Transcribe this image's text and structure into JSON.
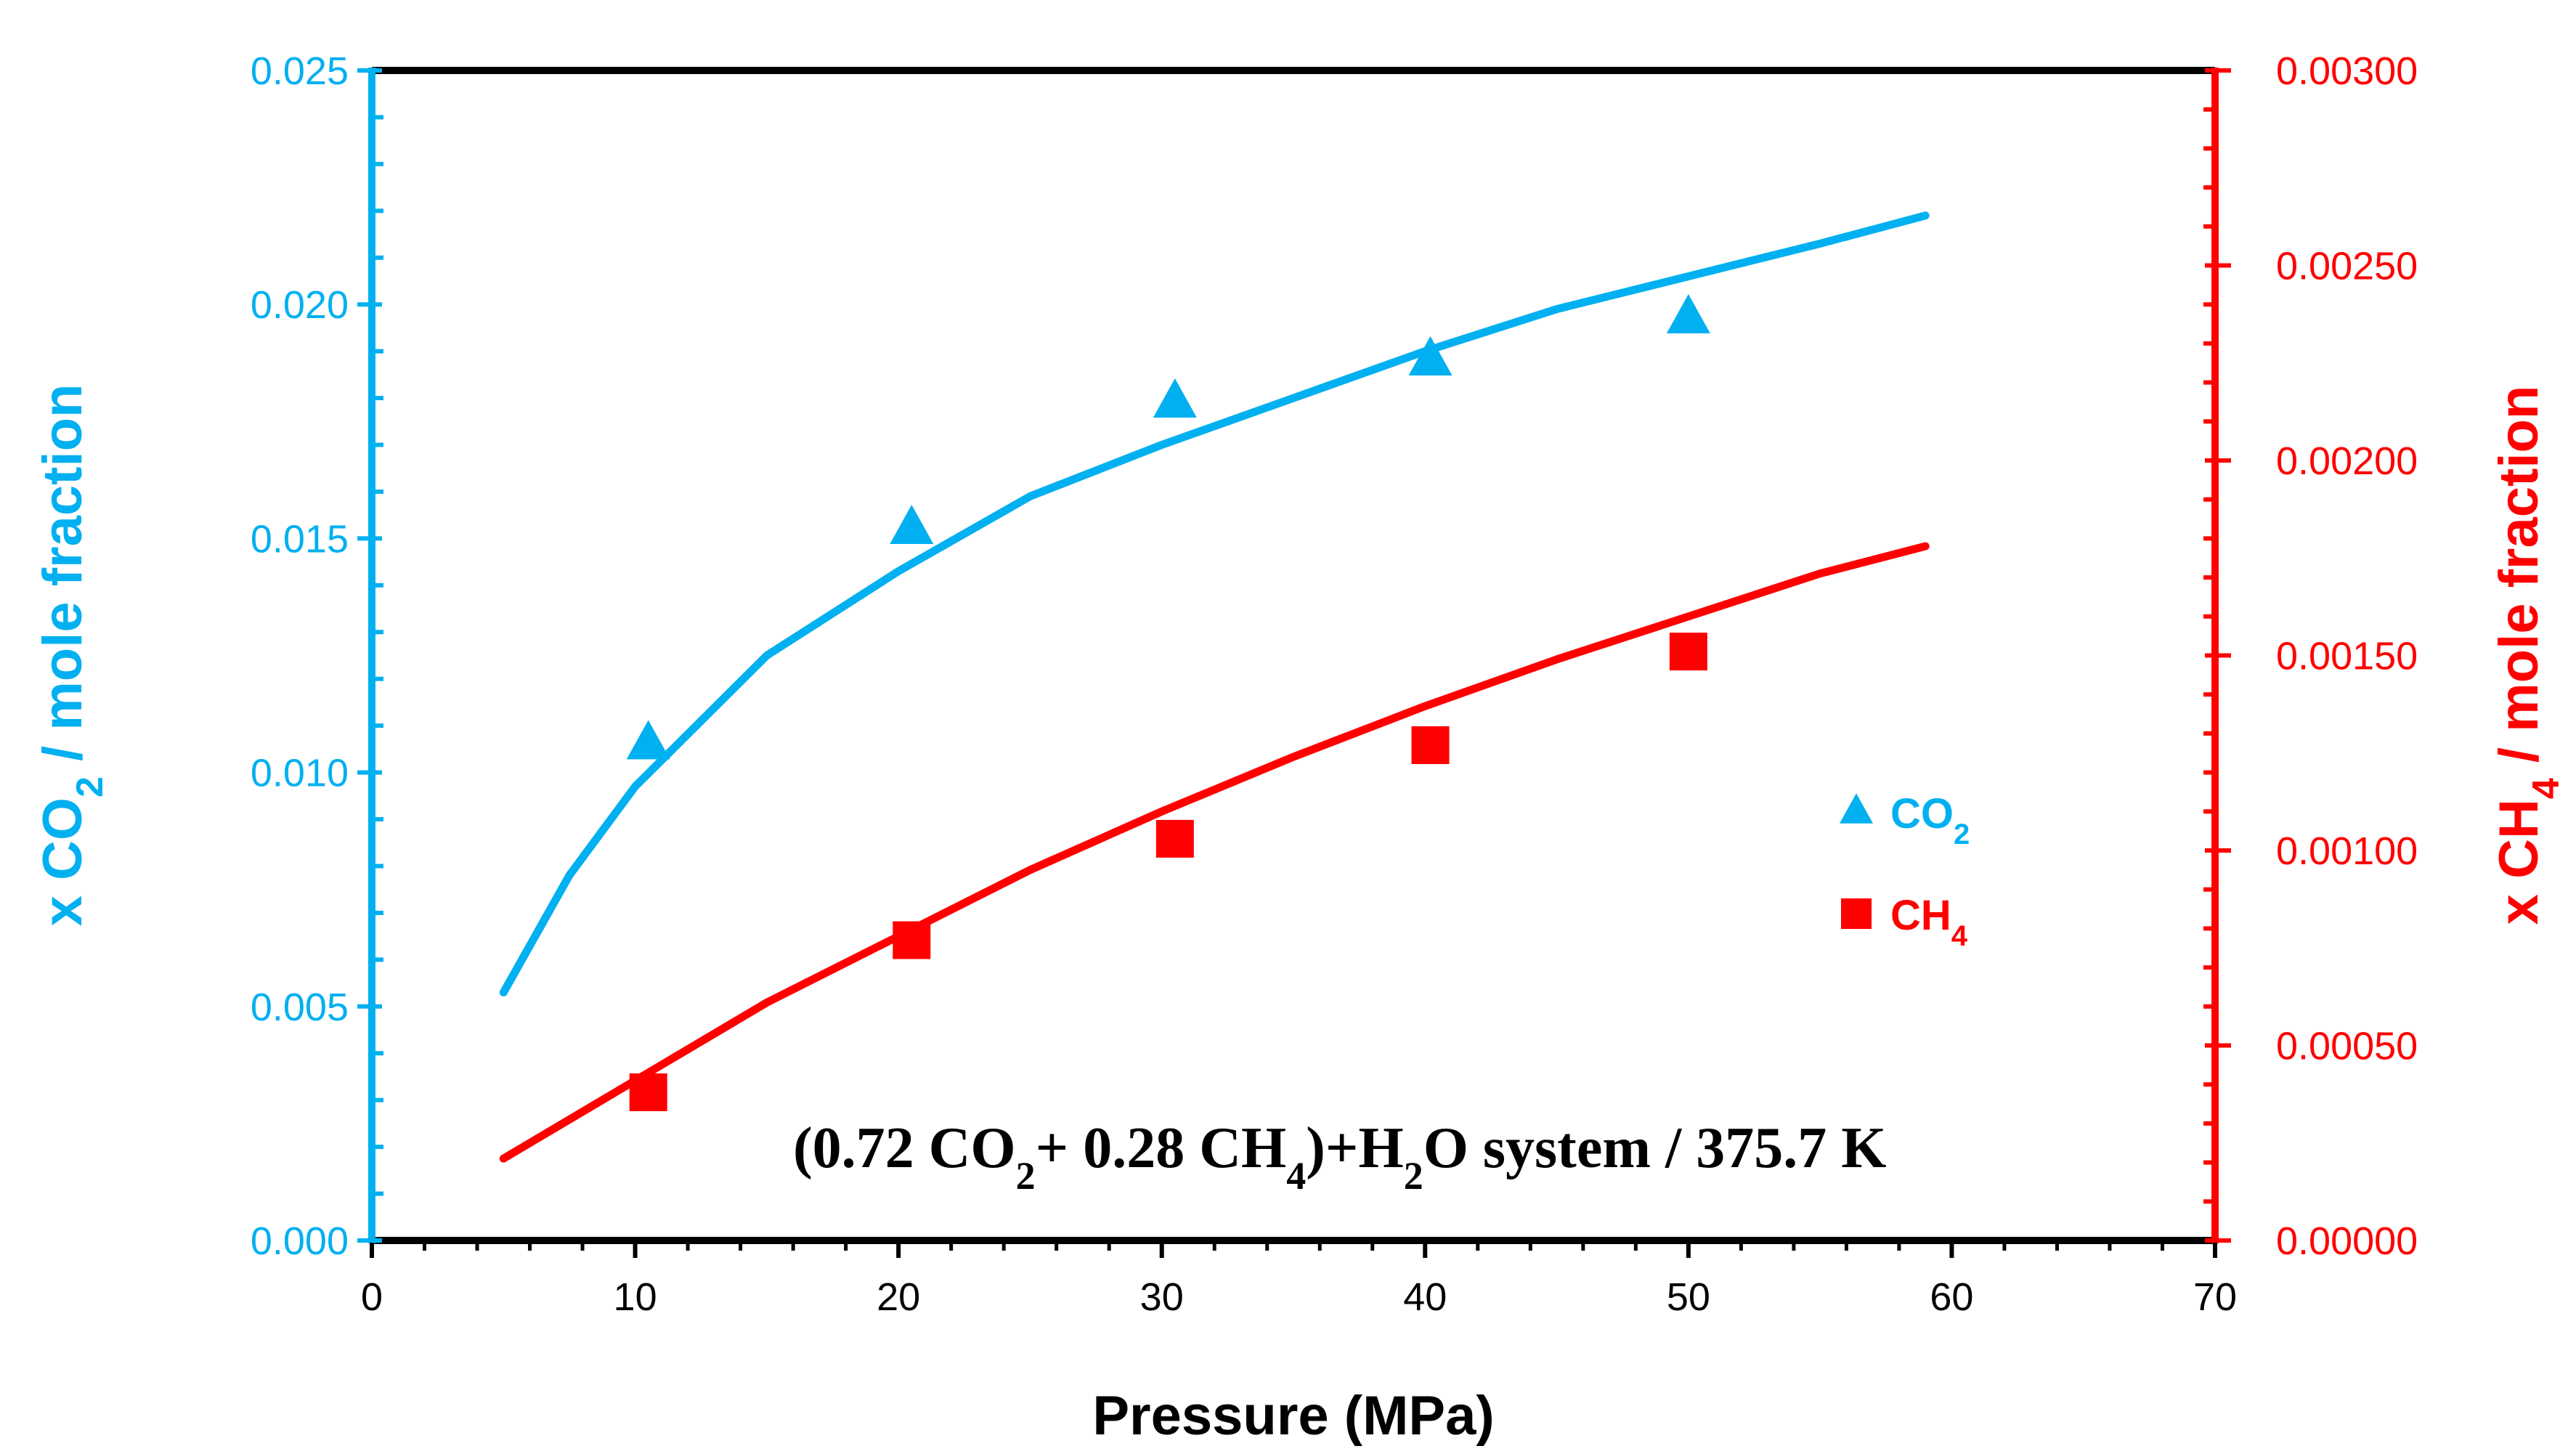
{
  "colors": {
    "co2": "#00B0F0",
    "ch4": "#FF0000",
    "axis": "#000000"
  },
  "chart_data": {
    "type": "scatter",
    "title": "",
    "xlabel": "Pressure (MPa)",
    "ylabel": {
      "prefix": "x CO",
      "sub": "2",
      "suffix": " / mole fraction"
    },
    "y2label": {
      "prefix": "x CH",
      "sub": "4",
      "suffix": " / mole fraction"
    },
    "xlim": [
      0,
      70
    ],
    "ylim": [
      0,
      0.025
    ],
    "y2lim": [
      0,
      0.003
    ],
    "x_ticks": [
      "0",
      "10",
      "20",
      "30",
      "40",
      "50",
      "60",
      "70"
    ],
    "y_ticks": [
      "0.000",
      "0.005",
      "0.010",
      "0.015",
      "0.020",
      "0.025"
    ],
    "y2_ticks": [
      "0.00000",
      "0.00050",
      "0.00100",
      "0.00150",
      "0.00200",
      "0.00250",
      "0.00300"
    ],
    "series": [
      {
        "name": "CO2",
        "label": {
          "prefix": "CO",
          "sub": "2"
        },
        "axis": "left",
        "marker": "triangle",
        "points": [
          {
            "x": 10.5,
            "y": 0.0106
          },
          {
            "x": 20.5,
            "y": 0.0152
          },
          {
            "x": 30.5,
            "y": 0.0179
          },
          {
            "x": 40.2,
            "y": 0.0188
          },
          {
            "x": 50.0,
            "y": 0.0197
          }
        ],
        "fit": [
          {
            "x": 5,
            "y": 0.0053
          },
          {
            "x": 7.5,
            "y": 0.0078
          },
          {
            "x": 10,
            "y": 0.0097
          },
          {
            "x": 15,
            "y": 0.0125
          },
          {
            "x": 20,
            "y": 0.0143
          },
          {
            "x": 25,
            "y": 0.0159
          },
          {
            "x": 30,
            "y": 0.017
          },
          {
            "x": 35,
            "y": 0.018
          },
          {
            "x": 40,
            "y": 0.019
          },
          {
            "x": 45,
            "y": 0.0199
          },
          {
            "x": 50,
            "y": 0.0206
          },
          {
            "x": 55,
            "y": 0.0213
          },
          {
            "x": 59,
            "y": 0.0219
          }
        ]
      },
      {
        "name": "CH4",
        "label": {
          "prefix": "CH",
          "sub": "4"
        },
        "axis": "right",
        "marker": "square",
        "points": [
          {
            "x": 10.5,
            "y": 0.00038
          },
          {
            "x": 20.5,
            "y": 0.00077
          },
          {
            "x": 30.5,
            "y": 0.00103
          },
          {
            "x": 40.2,
            "y": 0.00127
          },
          {
            "x": 50.0,
            "y": 0.00151
          }
        ],
        "fit": [
          {
            "x": 5,
            "y": 0.00021
          },
          {
            "x": 10,
            "y": 0.00041
          },
          {
            "x": 15,
            "y": 0.00061
          },
          {
            "x": 20,
            "y": 0.00078
          },
          {
            "x": 25,
            "y": 0.00095
          },
          {
            "x": 30,
            "y": 0.0011
          },
          {
            "x": 35,
            "y": 0.00124
          },
          {
            "x": 40,
            "y": 0.00137
          },
          {
            "x": 45,
            "y": 0.00149
          },
          {
            "x": 50,
            "y": 0.0016
          },
          {
            "x": 55,
            "y": 0.00171
          },
          {
            "x": 59,
            "y": 0.00178
          }
        ]
      }
    ],
    "annotation": {
      "parts": [
        {
          "t": "(0.72 CO"
        },
        {
          "t": "2",
          "sub": true
        },
        {
          "t": "+ 0.28 CH"
        },
        {
          "t": "4",
          "sub": true
        },
        {
          "t": ")+H"
        },
        {
          "t": "2",
          "sub": true
        },
        {
          "t": "O system / 375.7 K"
        }
      ]
    }
  }
}
